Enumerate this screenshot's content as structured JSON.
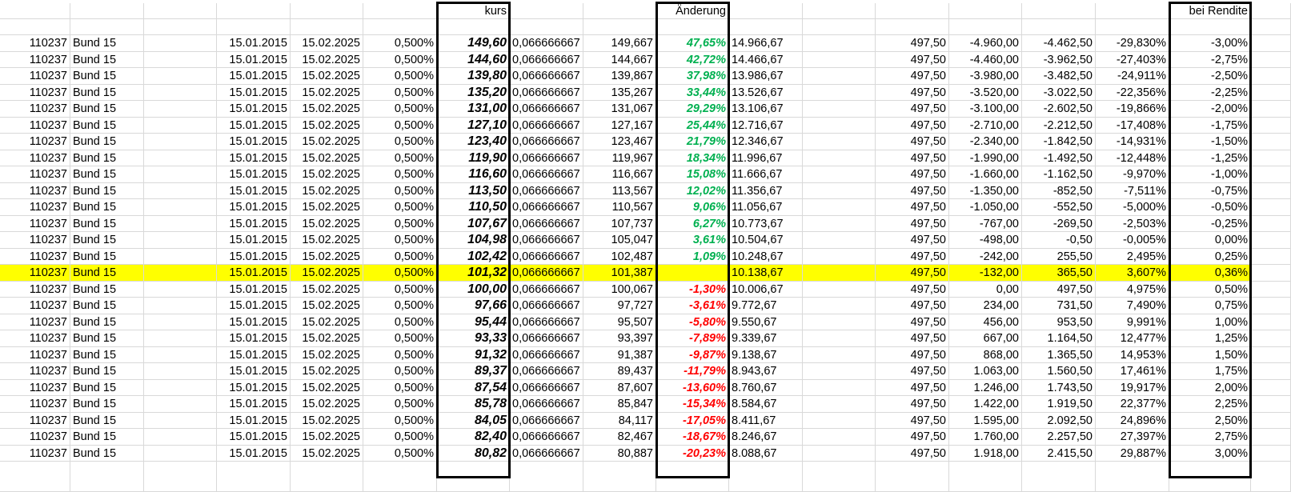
{
  "headers": {
    "kurs": "kurs",
    "aenderung": "Änderung",
    "rendite": "bei Rendite"
  },
  "colors": {
    "highlight": "#ffff00",
    "positive": "#00b050",
    "negative": "#ff0000",
    "grid": "#d9d9d9"
  },
  "highlight_row": 14,
  "rows": [
    [
      "110237",
      "Bund 15",
      "15.01.2015",
      "15.02.2025",
      "0,500%",
      "149,60",
      "0,066666667",
      "149,667",
      "47,65%",
      "14.966,67",
      "497,50",
      "-4.960,00",
      "-4.462,50",
      "-29,830%",
      "-3,00%"
    ],
    [
      "110237",
      "Bund 15",
      "15.01.2015",
      "15.02.2025",
      "0,500%",
      "144,60",
      "0,066666667",
      "144,667",
      "42,72%",
      "14.466,67",
      "497,50",
      "-4.460,00",
      "-3.962,50",
      "-27,403%",
      "-2,75%"
    ],
    [
      "110237",
      "Bund 15",
      "15.01.2015",
      "15.02.2025",
      "0,500%",
      "139,80",
      "0,066666667",
      "139,867",
      "37,98%",
      "13.986,67",
      "497,50",
      "-3.980,00",
      "-3.482,50",
      "-24,911%",
      "-2,50%"
    ],
    [
      "110237",
      "Bund 15",
      "15.01.2015",
      "15.02.2025",
      "0,500%",
      "135,20",
      "0,066666667",
      "135,267",
      "33,44%",
      "13.526,67",
      "497,50",
      "-3.520,00",
      "-3.022,50",
      "-22,356%",
      "-2,25%"
    ],
    [
      "110237",
      "Bund 15",
      "15.01.2015",
      "15.02.2025",
      "0,500%",
      "131,00",
      "0,066666667",
      "131,067",
      "29,29%",
      "13.106,67",
      "497,50",
      "-3.100,00",
      "-2.602,50",
      "-19,866%",
      "-2,00%"
    ],
    [
      "110237",
      "Bund 15",
      "15.01.2015",
      "15.02.2025",
      "0,500%",
      "127,10",
      "0,066666667",
      "127,167",
      "25,44%",
      "12.716,67",
      "497,50",
      "-2.710,00",
      "-2.212,50",
      "-17,408%",
      "-1,75%"
    ],
    [
      "110237",
      "Bund 15",
      "15.01.2015",
      "15.02.2025",
      "0,500%",
      "123,40",
      "0,066666667",
      "123,467",
      "21,79%",
      "12.346,67",
      "497,50",
      "-2.340,00",
      "-1.842,50",
      "-14,931%",
      "-1,50%"
    ],
    [
      "110237",
      "Bund 15",
      "15.01.2015",
      "15.02.2025",
      "0,500%",
      "119,90",
      "0,066666667",
      "119,967",
      "18,34%",
      "11.996,67",
      "497,50",
      "-1.990,00",
      "-1.492,50",
      "-12,448%",
      "-1,25%"
    ],
    [
      "110237",
      "Bund 15",
      "15.01.2015",
      "15.02.2025",
      "0,500%",
      "116,60",
      "0,066666667",
      "116,667",
      "15,08%",
      "11.666,67",
      "497,50",
      "-1.660,00",
      "-1.162,50",
      "-9,970%",
      "-1,00%"
    ],
    [
      "110237",
      "Bund 15",
      "15.01.2015",
      "15.02.2025",
      "0,500%",
      "113,50",
      "0,066666667",
      "113,567",
      "12,02%",
      "11.356,67",
      "497,50",
      "-1.350,00",
      "-852,50",
      "-7,511%",
      "-0,75%"
    ],
    [
      "110237",
      "Bund 15",
      "15.01.2015",
      "15.02.2025",
      "0,500%",
      "110,50",
      "0,066666667",
      "110,567",
      "9,06%",
      "11.056,67",
      "497,50",
      "-1.050,00",
      "-552,50",
      "-5,000%",
      "-0,50%"
    ],
    [
      "110237",
      "Bund 15",
      "15.01.2015",
      "15.02.2025",
      "0,500%",
      "107,67",
      "0,066666667",
      "107,737",
      "6,27%",
      "10.773,67",
      "497,50",
      "-767,00",
      "-269,50",
      "-2,503%",
      "-0,25%"
    ],
    [
      "110237",
      "Bund 15",
      "15.01.2015",
      "15.02.2025",
      "0,500%",
      "104,98",
      "0,066666667",
      "105,047",
      "3,61%",
      "10.504,67",
      "497,50",
      "-498,00",
      "-0,50",
      "-0,005%",
      "0,00%"
    ],
    [
      "110237",
      "Bund 15",
      "15.01.2015",
      "15.02.2025",
      "0,500%",
      "102,42",
      "0,066666667",
      "102,487",
      "1,09%",
      "10.248,67",
      "497,50",
      "-242,00",
      "255,50",
      "2,495%",
      "0,25%"
    ],
    [
      "110237",
      "Bund 15",
      "15.01.2015",
      "15.02.2025",
      "0,500%",
      "101,32",
      "0,066666667",
      "101,387",
      "",
      "10.138,67",
      "497,50",
      "-132,00",
      "365,50",
      "3,607%",
      "0,36%"
    ],
    [
      "110237",
      "Bund 15",
      "15.01.2015",
      "15.02.2025",
      "0,500%",
      "100,00",
      "0,066666667",
      "100,067",
      "-1,30%",
      "10.006,67",
      "497,50",
      "0,00",
      "497,50",
      "4,975%",
      "0,50%"
    ],
    [
      "110237",
      "Bund 15",
      "15.01.2015",
      "15.02.2025",
      "0,500%",
      "97,66",
      "0,066666667",
      "97,727",
      "-3,61%",
      "9.772,67",
      "497,50",
      "234,00",
      "731,50",
      "7,490%",
      "0,75%"
    ],
    [
      "110237",
      "Bund 15",
      "15.01.2015",
      "15.02.2025",
      "0,500%",
      "95,44",
      "0,066666667",
      "95,507",
      "-5,80%",
      "9.550,67",
      "497,50",
      "456,00",
      "953,50",
      "9,991%",
      "1,00%"
    ],
    [
      "110237",
      "Bund 15",
      "15.01.2015",
      "15.02.2025",
      "0,500%",
      "93,33",
      "0,066666667",
      "93,397",
      "-7,89%",
      "9.339,67",
      "497,50",
      "667,00",
      "1.164,50",
      "12,477%",
      "1,25%"
    ],
    [
      "110237",
      "Bund 15",
      "15.01.2015",
      "15.02.2025",
      "0,500%",
      "91,32",
      "0,066666667",
      "91,387",
      "-9,87%",
      "9.138,67",
      "497,50",
      "868,00",
      "1.365,50",
      "14,953%",
      "1,50%"
    ],
    [
      "110237",
      "Bund 15",
      "15.01.2015",
      "15.02.2025",
      "0,500%",
      "89,37",
      "0,066666667",
      "89,437",
      "-11,79%",
      "8.943,67",
      "497,50",
      "1.063,00",
      "1.560,50",
      "17,461%",
      "1,75%"
    ],
    [
      "110237",
      "Bund 15",
      "15.01.2015",
      "15.02.2025",
      "0,500%",
      "87,54",
      "0,066666667",
      "87,607",
      "-13,60%",
      "8.760,67",
      "497,50",
      "1.246,00",
      "1.743,50",
      "19,917%",
      "2,00%"
    ],
    [
      "110237",
      "Bund 15",
      "15.01.2015",
      "15.02.2025",
      "0,500%",
      "85,78",
      "0,066666667",
      "85,847",
      "-15,34%",
      "8.584,67",
      "497,50",
      "1.422,00",
      "1.919,50",
      "22,377%",
      "2,25%"
    ],
    [
      "110237",
      "Bund 15",
      "15.01.2015",
      "15.02.2025",
      "0,500%",
      "84,05",
      "0,066666667",
      "84,117",
      "-17,05%",
      "8.411,67",
      "497,50",
      "1.595,00",
      "2.092,50",
      "24,896%",
      "2,50%"
    ],
    [
      "110237",
      "Bund 15",
      "15.01.2015",
      "15.02.2025",
      "0,500%",
      "82,40",
      "0,066666667",
      "82,467",
      "-18,67%",
      "8.246,67",
      "497,50",
      "1.760,00",
      "2.257,50",
      "27,397%",
      "2,75%"
    ],
    [
      "110237",
      "Bund 15",
      "15.01.2015",
      "15.02.2025",
      "0,500%",
      "80,82",
      "0,066666667",
      "80,887",
      "-20,23%",
      "8.088,67",
      "497,50",
      "1.918,00",
      "2.415,50",
      "29,887%",
      "3,00%"
    ]
  ]
}
